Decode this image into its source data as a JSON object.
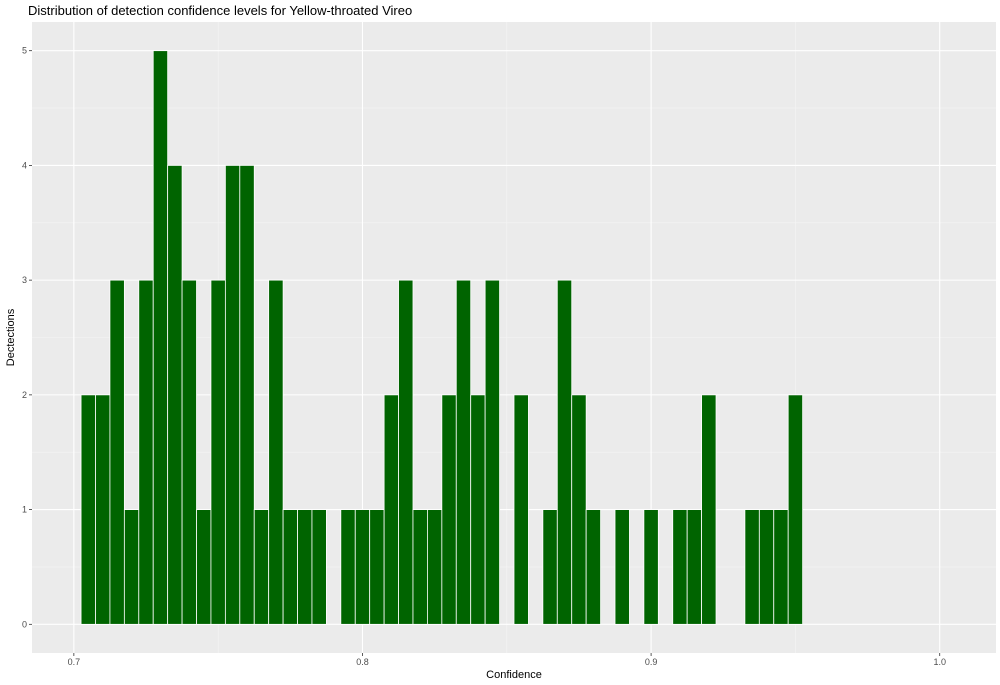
{
  "chart_data": {
    "type": "bar",
    "title": "Distribution of detection confidence levels for Yellow-throated Vireo",
    "xlabel": "Confidence",
    "ylabel": "Dectections",
    "xlim": [
      0.6855,
      1.0195
    ],
    "ylim": [
      -0.25,
      5.25
    ],
    "x_ticks": [
      0.7,
      0.8,
      0.9,
      1.0
    ],
    "x_tick_labels": [
      "0.7",
      "0.8",
      "0.9",
      "1.0"
    ],
    "y_ticks": [
      0,
      1,
      2,
      3,
      4,
      5
    ],
    "y_tick_labels": [
      "0",
      "1",
      "2",
      "3",
      "4",
      "5"
    ],
    "bin_width": 0.005,
    "bar_color": "#006400",
    "panel_color": "#ebebeb",
    "grid": true,
    "x": [
      0.705,
      0.71,
      0.715,
      0.72,
      0.725,
      0.73,
      0.735,
      0.74,
      0.745,
      0.75,
      0.755,
      0.76,
      0.765,
      0.77,
      0.775,
      0.78,
      0.785,
      0.79,
      0.795,
      0.8,
      0.805,
      0.81,
      0.815,
      0.82,
      0.825,
      0.83,
      0.835,
      0.84,
      0.845,
      0.85,
      0.855,
      0.86,
      0.865,
      0.87,
      0.875,
      0.88,
      0.885,
      0.89,
      0.895,
      0.9,
      0.905,
      0.91,
      0.915,
      0.92,
      0.925,
      0.93,
      0.935,
      0.94,
      0.945,
      0.95
    ],
    "values": [
      2,
      2,
      3,
      1,
      3,
      5,
      4,
      3,
      1,
      3,
      4,
      4,
      1,
      3,
      1,
      1,
      1,
      0,
      1,
      1,
      1,
      2,
      3,
      1,
      1,
      2,
      3,
      2,
      3,
      0,
      2,
      0,
      1,
      3,
      2,
      1,
      0,
      1,
      0,
      1,
      0,
      1,
      1,
      2,
      0,
      0,
      1,
      1,
      1,
      2
    ]
  }
}
